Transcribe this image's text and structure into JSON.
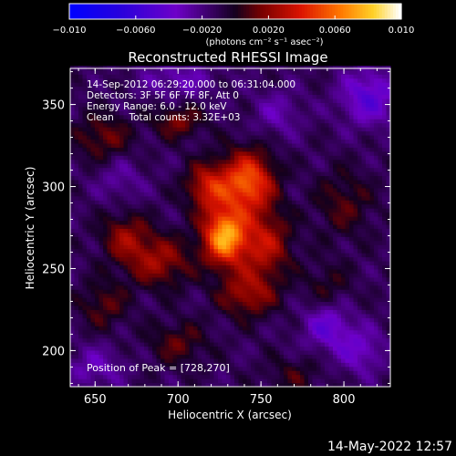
{
  "colorbar": {
    "ticks": [
      {
        "value": -0.01,
        "label": "-0.010"
      },
      {
        "value": -0.006,
        "label": "-0.0060"
      },
      {
        "value": -0.002,
        "label": "-0.0020"
      },
      {
        "value": 0.002,
        "label": "0.0020"
      },
      {
        "value": 0.006,
        "label": "0.0060"
      },
      {
        "value": 0.01,
        "label": "0.010"
      }
    ],
    "range": [
      -0.01,
      0.01
    ],
    "units": "(photons cm⁻² s⁻¹ asec⁻²)"
  },
  "chart_data": {
    "type": "heatmap",
    "title": "Reconstructed RHESSI Image",
    "xlabel": "Heliocentric X (arcsec)",
    "ylabel": "Heliocentric Y (arcsec)",
    "xlim": [
      635,
      828
    ],
    "ylim": [
      178,
      372
    ],
    "xticks": [
      650,
      700,
      750,
      800
    ],
    "yticks": [
      200,
      250,
      300,
      350
    ],
    "info_lines": [
      "14-Sep-2012 06:29:20.000 to 06:31:04.000",
      "Detectors: 3F 5F 6F 7F 8F, Att 0",
      "Energy Range: 6.0 - 12.0 keV",
      "Clean     Total counts: 3.32E+03"
    ],
    "peak_label": "Position of Peak = [728,270]",
    "peak": [
      728,
      270
    ],
    "sources": [
      {
        "x": 728,
        "y": 270,
        "amp": 0.0085,
        "sx": 9,
        "sy": 12
      },
      {
        "x": 742,
        "y": 303,
        "amp": 0.0068,
        "sx": 11,
        "sy": 13
      },
      {
        "x": 718,
        "y": 300,
        "amp": 0.0045,
        "sx": 9,
        "sy": 10
      },
      {
        "x": 752,
        "y": 265,
        "amp": 0.0042,
        "sx": 11,
        "sy": 14
      },
      {
        "x": 742,
        "y": 235,
        "amp": 0.0035,
        "sx": 12,
        "sy": 10
      },
      {
        "x": 688,
        "y": 255,
        "amp": 0.0035,
        "sx": 14,
        "sy": 11
      },
      {
        "x": 668,
        "y": 270,
        "amp": 0.003,
        "sx": 10,
        "sy": 10
      },
      {
        "x": 700,
        "y": 340,
        "amp": 0.0028,
        "sx": 10,
        "sy": 7
      },
      {
        "x": 655,
        "y": 330,
        "amp": 0.0025,
        "sx": 12,
        "sy": 10
      },
      {
        "x": 700,
        "y": 205,
        "amp": 0.0022,
        "sx": 12,
        "sy": 9
      },
      {
        "x": 655,
        "y": 228,
        "amp": 0.0022,
        "sx": 10,
        "sy": 10
      },
      {
        "x": 800,
        "y": 290,
        "amp": 0.002,
        "sx": 12,
        "sy": 14
      },
      {
        "x": 790,
        "y": 240,
        "amp": 0.0015,
        "sx": 10,
        "sy": 10
      },
      {
        "x": 770,
        "y": 185,
        "amp": 0.0015,
        "sx": 12,
        "sy": 8
      }
    ],
    "negative_regions": [
      {
        "x": 815,
        "y": 355,
        "amp": -0.0035,
        "sx": 12,
        "sy": 12
      },
      {
        "x": 700,
        "y": 365,
        "amp": -0.002,
        "sx": 16,
        "sy": 8
      },
      {
        "x": 760,
        "y": 345,
        "amp": -0.0018,
        "sx": 10,
        "sy": 10
      },
      {
        "x": 790,
        "y": 215,
        "amp": -0.003,
        "sx": 10,
        "sy": 10
      },
      {
        "x": 810,
        "y": 200,
        "amp": -0.0025,
        "sx": 10,
        "sy": 10
      },
      {
        "x": 650,
        "y": 190,
        "amp": -0.002,
        "sx": 12,
        "sy": 9
      },
      {
        "x": 665,
        "y": 305,
        "amp": -0.0015,
        "sx": 10,
        "sy": 10
      }
    ],
    "grid": false
  },
  "footer": {
    "timestamp": "14-May-2022 12:57"
  }
}
